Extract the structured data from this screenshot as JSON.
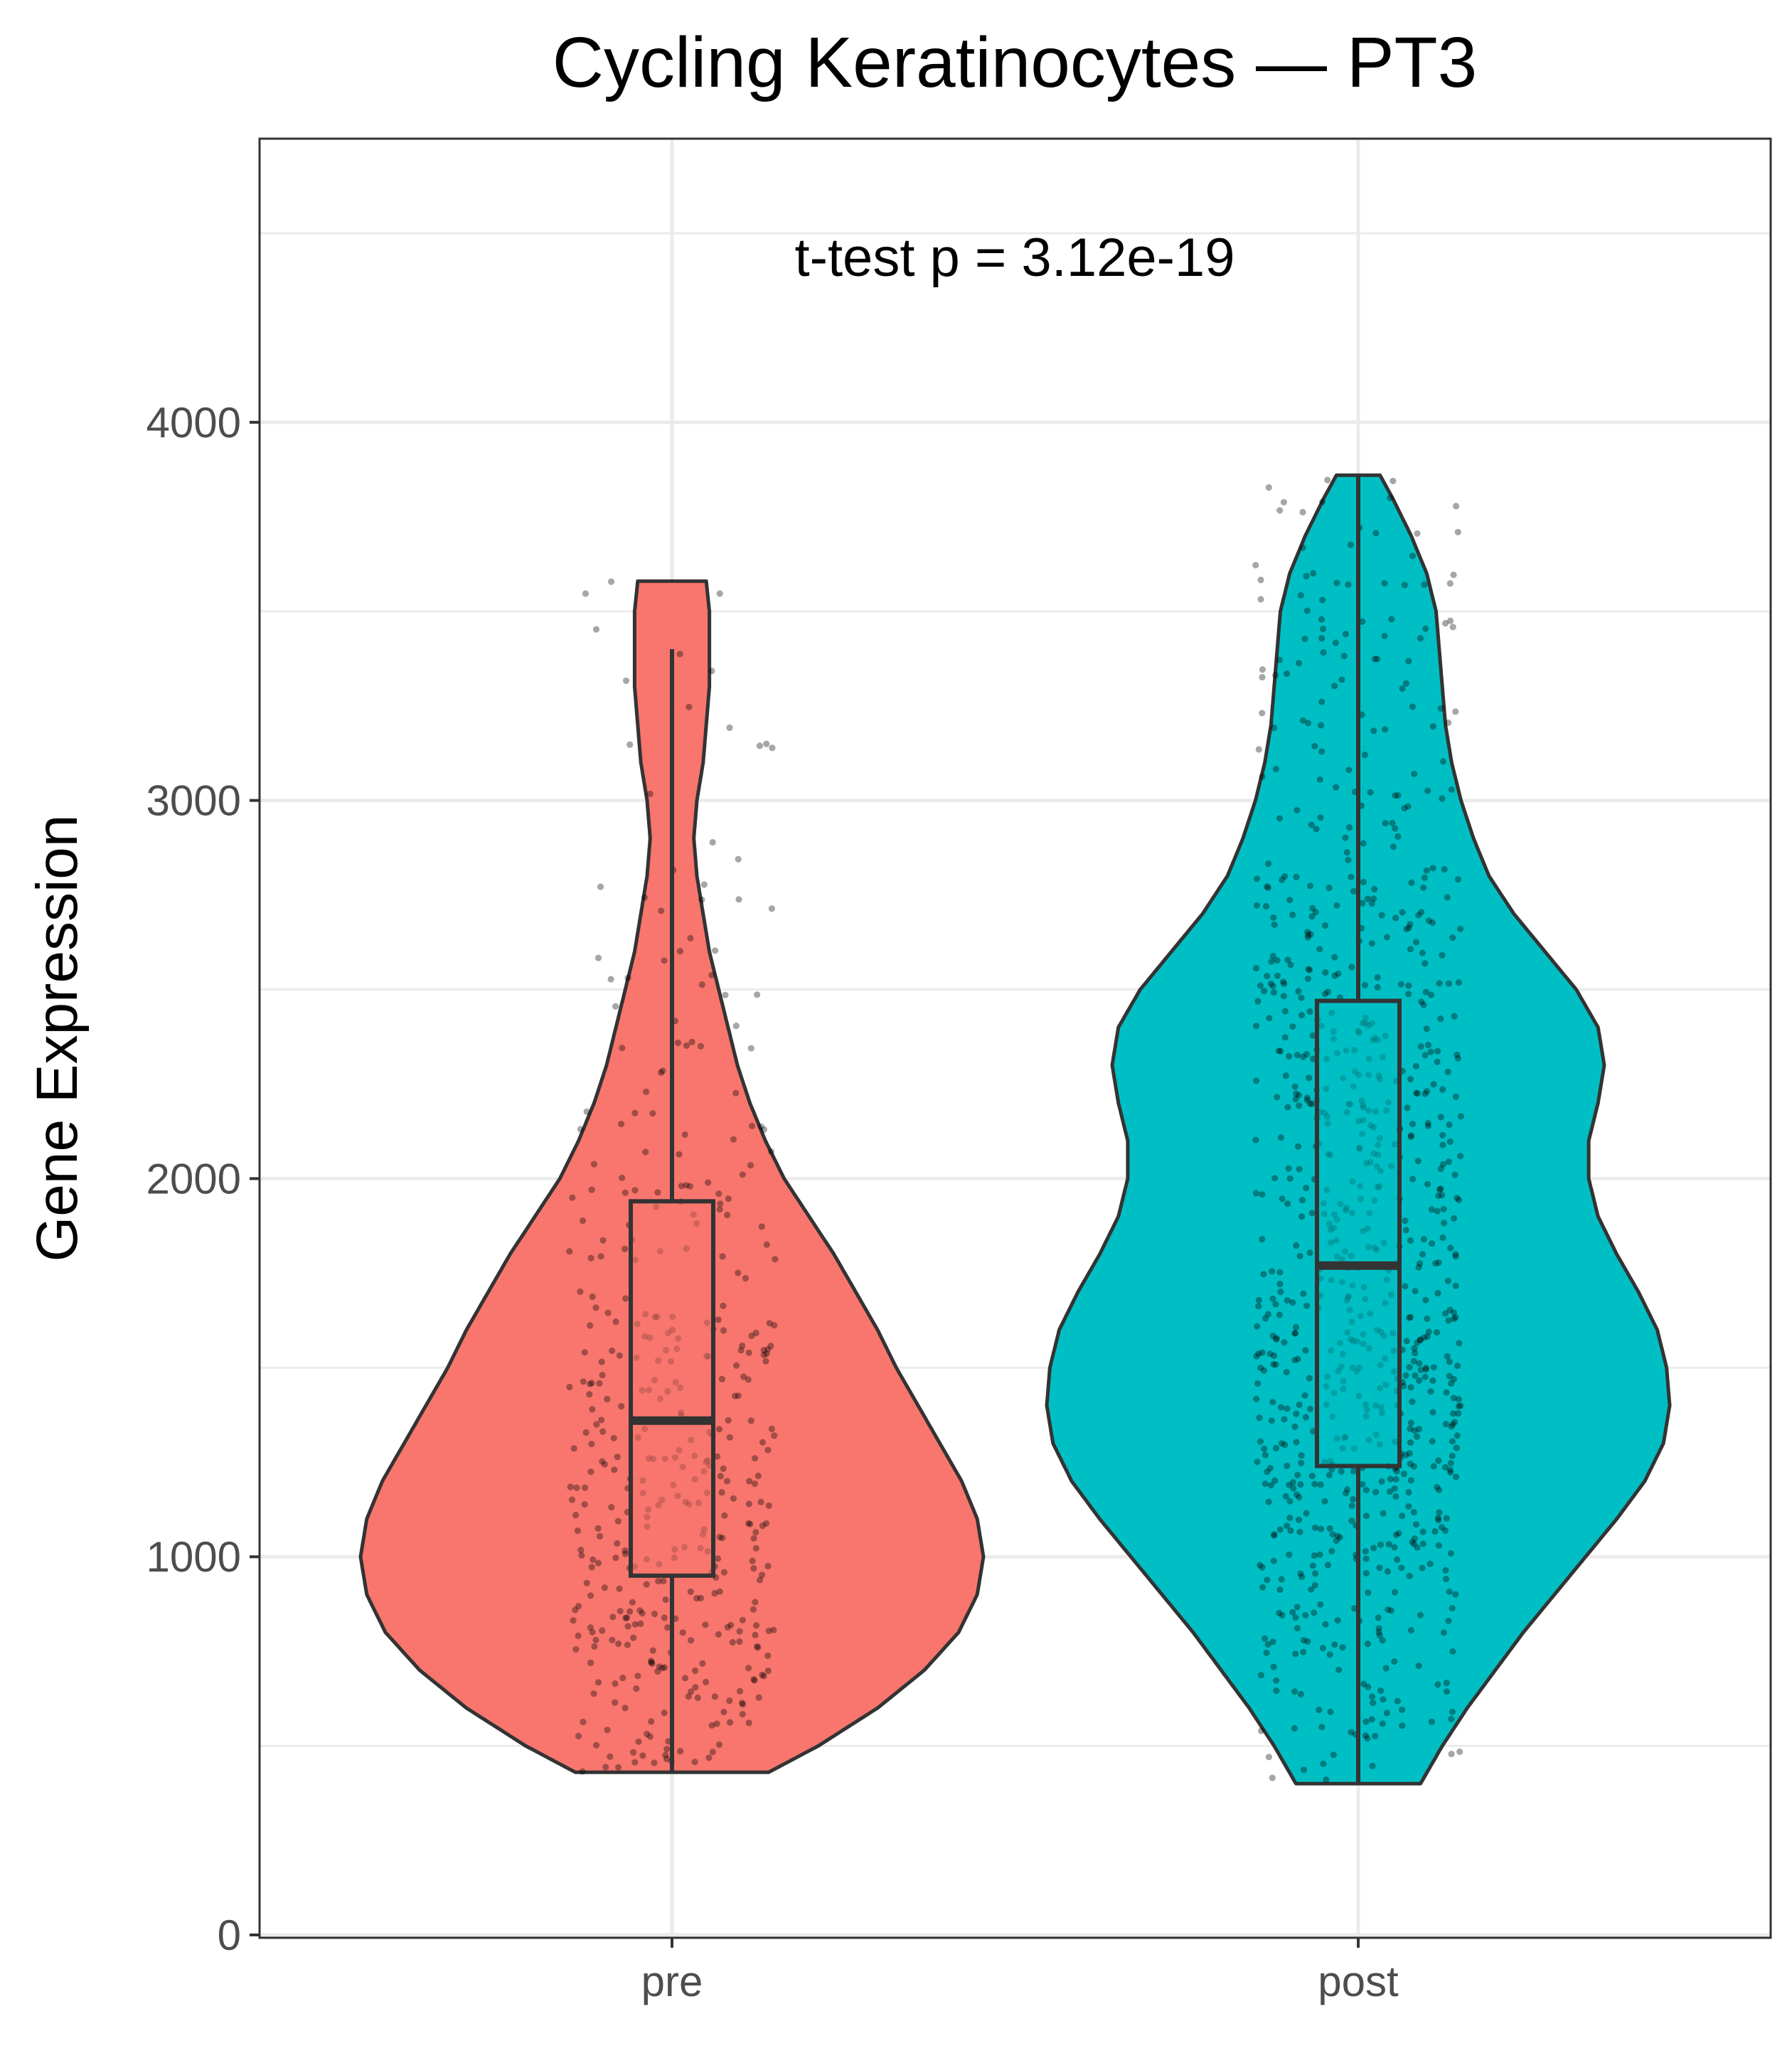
{
  "chart_data": {
    "type": "violin",
    "title": "Cycling Keratinocytes — PT3",
    "xlabel": "",
    "ylabel": "Gene Expression",
    "annotation": "t-test p = 3.12e-19",
    "categories": [
      "pre",
      "post"
    ],
    "ylim": [
      0,
      4750
    ],
    "yticks": [
      0,
      1000,
      2000,
      3000,
      4000
    ],
    "ytick_labels": [
      "0",
      "1000",
      "2000",
      "3000",
      "4000"
    ],
    "grid": true,
    "legend": "none",
    "groups": [
      {
        "name": "pre",
        "color": "#F8766D",
        "min": 430,
        "max": 3580,
        "box": {
          "q1": 950,
          "median": 1360,
          "q3": 1940,
          "whisker_low": 430,
          "whisker_high": 3400
        },
        "density": [
          [
            430,
            0.31
          ],
          [
            500,
            0.47
          ],
          [
            600,
            0.66
          ],
          [
            700,
            0.81
          ],
          [
            800,
            0.92
          ],
          [
            900,
            0.98
          ],
          [
            1000,
            1.0
          ],
          [
            1100,
            0.98
          ],
          [
            1200,
            0.93
          ],
          [
            1300,
            0.86
          ],
          [
            1400,
            0.79
          ],
          [
            1500,
            0.72
          ],
          [
            1600,
            0.66
          ],
          [
            1700,
            0.59
          ],
          [
            1800,
            0.52
          ],
          [
            1900,
            0.44
          ],
          [
            2000,
            0.36
          ],
          [
            2100,
            0.3
          ],
          [
            2200,
            0.25
          ],
          [
            2300,
            0.21
          ],
          [
            2400,
            0.18
          ],
          [
            2500,
            0.15
          ],
          [
            2600,
            0.12
          ],
          [
            2700,
            0.1
          ],
          [
            2800,
            0.08
          ],
          [
            2900,
            0.07
          ],
          [
            3000,
            0.08
          ],
          [
            3100,
            0.1
          ],
          [
            3200,
            0.11
          ],
          [
            3300,
            0.12
          ],
          [
            3400,
            0.12
          ],
          [
            3500,
            0.12
          ],
          [
            3580,
            0.11
          ]
        ],
        "n_points": 420
      },
      {
        "name": "post",
        "color": "#00BFC4",
        "min": 400,
        "max": 3860,
        "box": {
          "q1": 1240,
          "median": 1770,
          "q3": 2470,
          "whisker_low": 400,
          "whisker_high": 3860
        },
        "density": [
          [
            400,
            0.2
          ],
          [
            500,
            0.27
          ],
          [
            600,
            0.35
          ],
          [
            700,
            0.44
          ],
          [
            800,
            0.53
          ],
          [
            900,
            0.63
          ],
          [
            1000,
            0.73
          ],
          [
            1100,
            0.83
          ],
          [
            1200,
            0.92
          ],
          [
            1300,
            0.98
          ],
          [
            1400,
            1.0
          ],
          [
            1500,
            0.99
          ],
          [
            1600,
            0.96
          ],
          [
            1700,
            0.9
          ],
          [
            1800,
            0.83
          ],
          [
            1900,
            0.77
          ],
          [
            2000,
            0.74
          ],
          [
            2100,
            0.74
          ],
          [
            2200,
            0.77
          ],
          [
            2300,
            0.79
          ],
          [
            2400,
            0.77
          ],
          [
            2500,
            0.7
          ],
          [
            2600,
            0.6
          ],
          [
            2700,
            0.5
          ],
          [
            2800,
            0.42
          ],
          [
            2900,
            0.37
          ],
          [
            3000,
            0.33
          ],
          [
            3100,
            0.3
          ],
          [
            3200,
            0.28
          ],
          [
            3300,
            0.27
          ],
          [
            3400,
            0.26
          ],
          [
            3500,
            0.25
          ],
          [
            3600,
            0.22
          ],
          [
            3700,
            0.17
          ],
          [
            3800,
            0.11
          ],
          [
            3860,
            0.07
          ]
        ],
        "n_points": 880
      }
    ]
  }
}
